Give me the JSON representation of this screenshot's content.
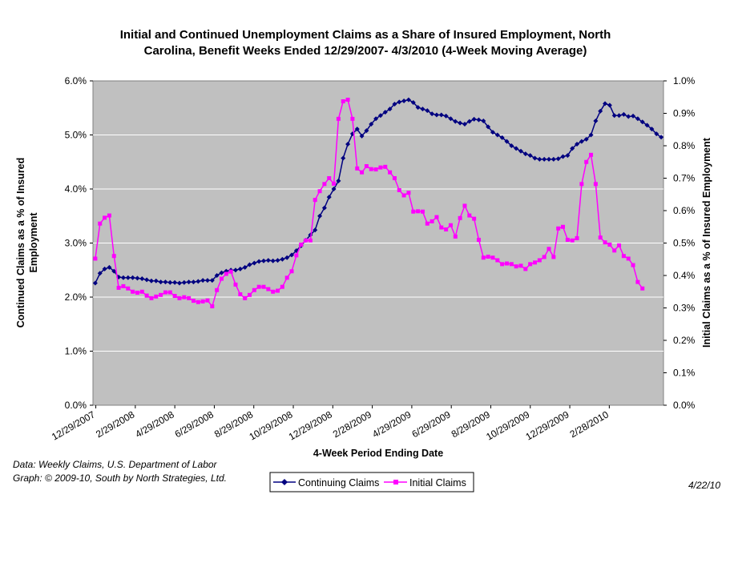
{
  "chart_data": {
    "type": "line",
    "title_line1": "Initial and Continued Unemployment Claims as a Share of Insured Employment, North",
    "title_line2": "Carolina, Benefit Weeks Ended 12/29/2007- 4/3/2010 (4-Week Moving Average)",
    "xlabel": "4-Week Period Ending Date",
    "ylabel_left_line1": "Continued Claims as a % of Insured",
    "ylabel_left_line2": "Employment",
    "ylabel_right": "Initial Claims as a % of Insured Employment",
    "x_tick_labels": [
      "12/29/2007",
      "2/29/2008",
      "4/29/2008",
      "6/29/2008",
      "8/29/2008",
      "10/29/2008",
      "12/29/2008",
      "2/28/2009",
      "4/29/2009",
      "6/29/2009",
      "8/29/2009",
      "10/29/2009",
      "12/29/2009",
      "2/28/2010"
    ],
    "y_left_ticks": [
      "0.0%",
      "1.0%",
      "2.0%",
      "3.0%",
      "4.0%",
      "5.0%",
      "6.0%"
    ],
    "y_right_ticks": [
      "0.0%",
      "0.1%",
      "0.2%",
      "0.3%",
      "0.4%",
      "0.5%",
      "0.6%",
      "0.7%",
      "0.8%",
      "0.9%",
      "1.0%"
    ],
    "ylim_left": [
      0,
      6.0
    ],
    "ylim_right": [
      0,
      1.0
    ],
    "grid": "horizontal",
    "plot_background": "#c0c0c0",
    "legend_position": "bottom-center",
    "series": [
      {
        "name": "Continuing Claims",
        "axis": "left",
        "color": "#000080",
        "marker": "diamond",
        "values": [
          2.26,
          2.44,
          2.52,
          2.55,
          2.48,
          2.37,
          2.36,
          2.36,
          2.36,
          2.35,
          2.34,
          2.32,
          2.3,
          2.3,
          2.28,
          2.28,
          2.27,
          2.27,
          2.26,
          2.27,
          2.28,
          2.28,
          2.29,
          2.31,
          2.31,
          2.31,
          2.4,
          2.45,
          2.48,
          2.5,
          2.5,
          2.52,
          2.55,
          2.6,
          2.63,
          2.66,
          2.67,
          2.68,
          2.67,
          2.68,
          2.7,
          2.73,
          2.78,
          2.86,
          2.95,
          3.05,
          3.15,
          3.24,
          3.5,
          3.65,
          3.85,
          4.0,
          4.15,
          4.57,
          4.83,
          5.02,
          5.11,
          4.98,
          5.08,
          5.2,
          5.3,
          5.36,
          5.42,
          5.48,
          5.57,
          5.61,
          5.63,
          5.65,
          5.6,
          5.51,
          5.48,
          5.45,
          5.39,
          5.37,
          5.37,
          5.35,
          5.3,
          5.25,
          5.22,
          5.2,
          5.25,
          5.29,
          5.28,
          5.26,
          5.15,
          5.05,
          5.0,
          4.95,
          4.88,
          4.8,
          4.75,
          4.7,
          4.65,
          4.62,
          4.57,
          4.55,
          4.55,
          4.55,
          4.55,
          4.56,
          4.6,
          4.62,
          4.75,
          4.83,
          4.88,
          4.92,
          5.0,
          5.26,
          5.44,
          5.58,
          5.55,
          5.36,
          5.36,
          5.38,
          5.34,
          5.35,
          5.3,
          5.24,
          5.18,
          5.11,
          5.02,
          4.96
        ]
      },
      {
        "name": "Initial Claims",
        "axis": "right",
        "color": "#ff00ff",
        "marker": "square",
        "values": [
          0.452,
          0.56,
          0.578,
          0.585,
          0.46,
          0.362,
          0.367,
          0.36,
          0.35,
          0.347,
          0.35,
          0.338,
          0.33,
          0.335,
          0.34,
          0.348,
          0.348,
          0.337,
          0.33,
          0.333,
          0.33,
          0.322,
          0.318,
          0.32,
          0.323,
          0.305,
          0.355,
          0.39,
          0.405,
          0.412,
          0.372,
          0.342,
          0.33,
          0.34,
          0.355,
          0.365,
          0.365,
          0.358,
          0.35,
          0.353,
          0.365,
          0.393,
          0.413,
          0.462,
          0.495,
          0.508,
          0.508,
          0.633,
          0.66,
          0.682,
          0.7,
          0.683,
          0.883,
          0.937,
          0.942,
          0.883,
          0.73,
          0.718,
          0.737,
          0.728,
          0.727,
          0.733,
          0.735,
          0.718,
          0.7,
          0.663,
          0.647,
          0.655,
          0.597,
          0.598,
          0.597,
          0.56,
          0.567,
          0.58,
          0.548,
          0.542,
          0.555,
          0.52,
          0.577,
          0.615,
          0.585,
          0.575,
          0.51,
          0.455,
          0.458,
          0.455,
          0.447,
          0.435,
          0.437,
          0.435,
          0.428,
          0.43,
          0.42,
          0.435,
          0.44,
          0.447,
          0.457,
          0.482,
          0.457,
          0.545,
          0.55,
          0.51,
          0.508,
          0.515,
          0.682,
          0.75,
          0.772,
          0.682,
          0.517,
          0.502,
          0.495,
          0.477,
          0.493,
          0.46,
          0.452,
          0.432,
          0.38,
          0.36
        ]
      }
    ]
  },
  "notes": {
    "source_line": "Data:  Weekly Claims, U.S. Department of Labor",
    "credit_line": "Graph: © 2009-10, South by North Strategies, Ltd.",
    "date_stamp": "4/22/10"
  }
}
